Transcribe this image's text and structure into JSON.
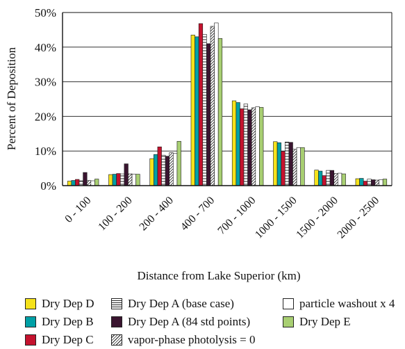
{
  "chart_data": {
    "type": "bar",
    "title": "",
    "xlabel": "Distance from Lake Superior (km)",
    "ylabel": "Percent of Deposition",
    "ylim": [
      0,
      50
    ],
    "yticks": [
      "0%",
      "10%",
      "20%",
      "30%",
      "40%",
      "50%"
    ],
    "grid": true,
    "legend_position": "bottom",
    "categories": [
      "0 - 100",
      "100 - 200",
      "200 - 400",
      "400 - 700",
      "700 - 1000",
      "1000 - 1500",
      "1500 - 2000",
      "2000 - 2500"
    ],
    "series": [
      {
        "name": "Dry Dep D",
        "color": "#f5e21b",
        "pattern": "solid",
        "values": [
          1.3,
          3.2,
          7.8,
          43.5,
          24.5,
          12.7,
          4.5,
          2.0
        ]
      },
      {
        "name": "Dry Dep B",
        "color": "#00a0a6",
        "pattern": "solid",
        "values": [
          1.5,
          3.3,
          9.0,
          43.0,
          24.0,
          12.4,
          4.2,
          2.1
        ]
      },
      {
        "name": "Dry Dep C",
        "color": "#c4122e",
        "pattern": "solid",
        "values": [
          1.8,
          3.5,
          11.2,
          46.8,
          22.2,
          9.9,
          2.9,
          1.3
        ]
      },
      {
        "name": "Dry Dep A (base case)",
        "color": "#ffffff",
        "pattern": "hstripe",
        "values": [
          1.4,
          3.4,
          8.8,
          43.7,
          23.6,
          12.6,
          4.4,
          1.9
        ]
      },
      {
        "name": "Dry Dep A (84 std points)",
        "color": "#3a1530",
        "pattern": "solid",
        "values": [
          3.8,
          6.3,
          8.5,
          41.0,
          21.9,
          12.5,
          4.4,
          1.7
        ]
      },
      {
        "name": "vapor-phase photolysis = 0",
        "color": "#ffffff",
        "pattern": "diag",
        "values": [
          1.5,
          3.4,
          9.5,
          46.0,
          22.5,
          10.5,
          3.5,
          1.6
        ]
      },
      {
        "name": "particle washout x 4",
        "color": "#ffffff",
        "pattern": "outline",
        "values": [
          1.4,
          3.3,
          9.3,
          47.0,
          22.8,
          11.0,
          3.6,
          1.7
        ]
      },
      {
        "name": "Dry Dep E",
        "color": "#a8cf72",
        "pattern": "solid",
        "values": [
          1.9,
          3.3,
          12.8,
          42.5,
          22.6,
          11.0,
          3.4,
          1.9
        ]
      }
    ]
  },
  "legend": {
    "items": [
      {
        "label": "Dry Dep D"
      },
      {
        "label": "Dry Dep A (base case)"
      },
      {
        "label": "particle washout x 4"
      },
      {
        "label": "Dry Dep B"
      },
      {
        "label": "Dry Dep A (84 std points)"
      },
      {
        "label": "Dry Dep E"
      },
      {
        "label": "Dry Dep C"
      },
      {
        "label": "vapor-phase photolysis = 0"
      }
    ]
  }
}
